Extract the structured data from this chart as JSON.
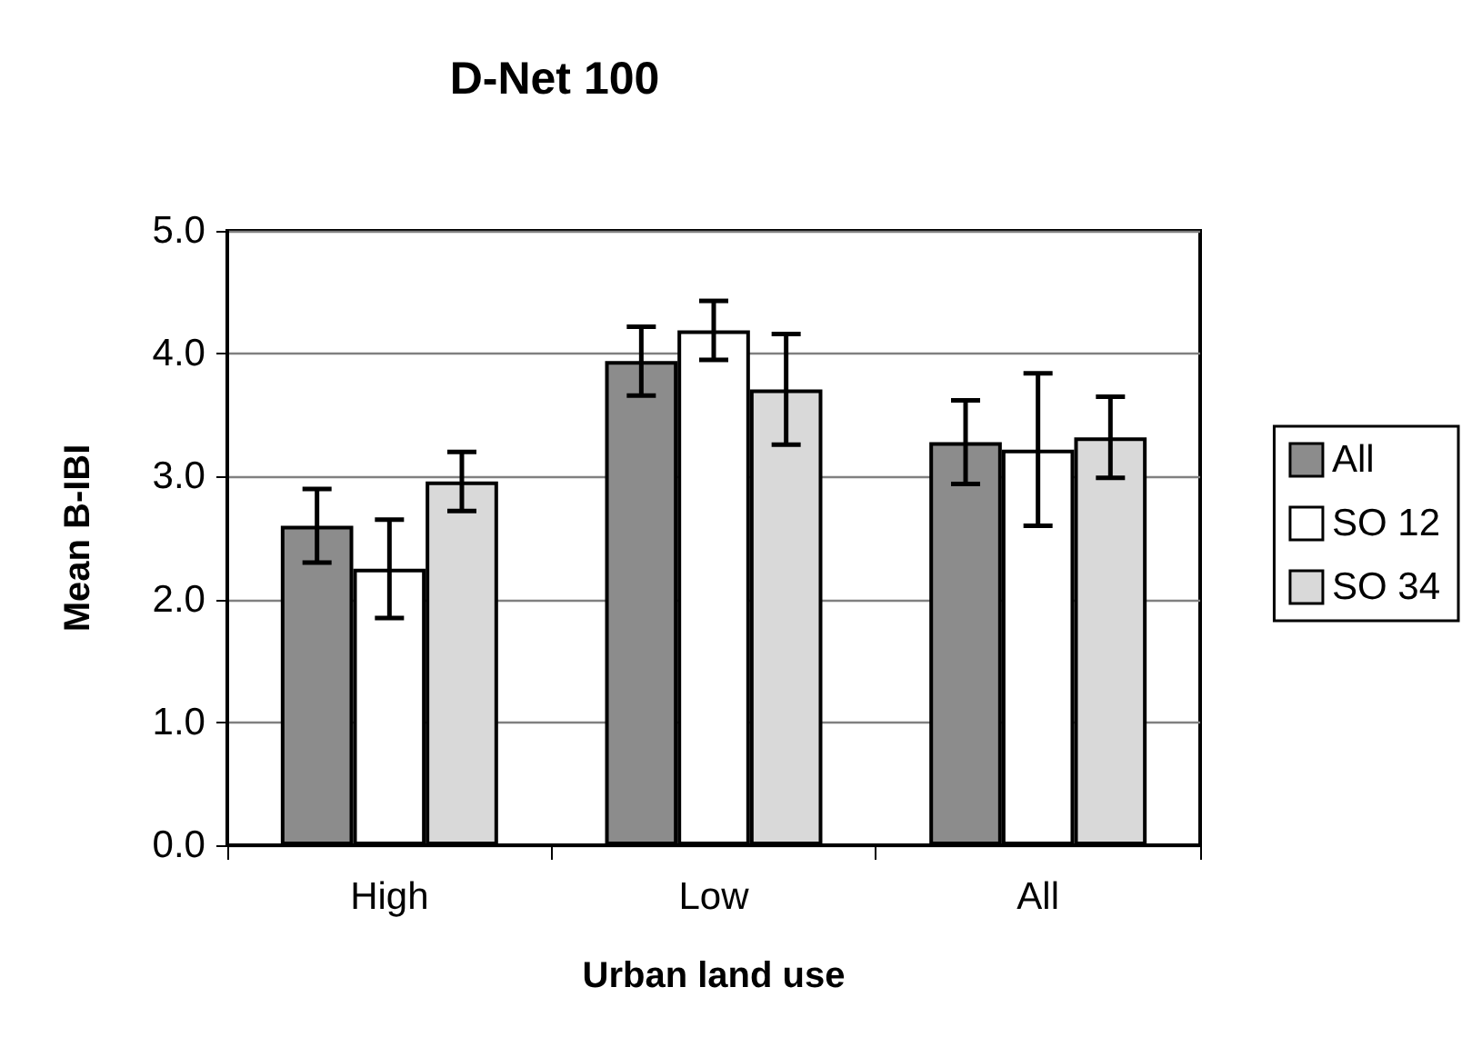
{
  "chart_data": {
    "type": "bar",
    "title": "D-Net 100",
    "xlabel": "Urban land use",
    "ylabel": "Mean B-IBI",
    "categories": [
      "High",
      "Low",
      "All"
    ],
    "series": [
      {
        "name": "All",
        "color": "#8c8c8c",
        "values": [
          2.6,
          3.94,
          3.28
        ],
        "errors": [
          0.3,
          0.28,
          0.34
        ]
      },
      {
        "name": "SO 12",
        "color": "#ffffff",
        "values": [
          2.25,
          4.19,
          3.22
        ],
        "errors": [
          0.4,
          0.24,
          0.62
        ]
      },
      {
        "name": "SO 34",
        "color": "#d9d9d9",
        "values": [
          2.96,
          3.71,
          3.32
        ],
        "errors": [
          0.24,
          0.45,
          0.33
        ]
      }
    ],
    "ylim": [
      0,
      5
    ],
    "yticks": [
      {
        "value": 0,
        "label": "0.0"
      },
      {
        "value": 1,
        "label": "1.0"
      },
      {
        "value": 2,
        "label": "2.0"
      },
      {
        "value": 3,
        "label": "3.0"
      },
      {
        "value": 4,
        "label": "4.0"
      },
      {
        "value": 5,
        "label": "5.0"
      }
    ],
    "grid": "y",
    "legend": "right"
  }
}
